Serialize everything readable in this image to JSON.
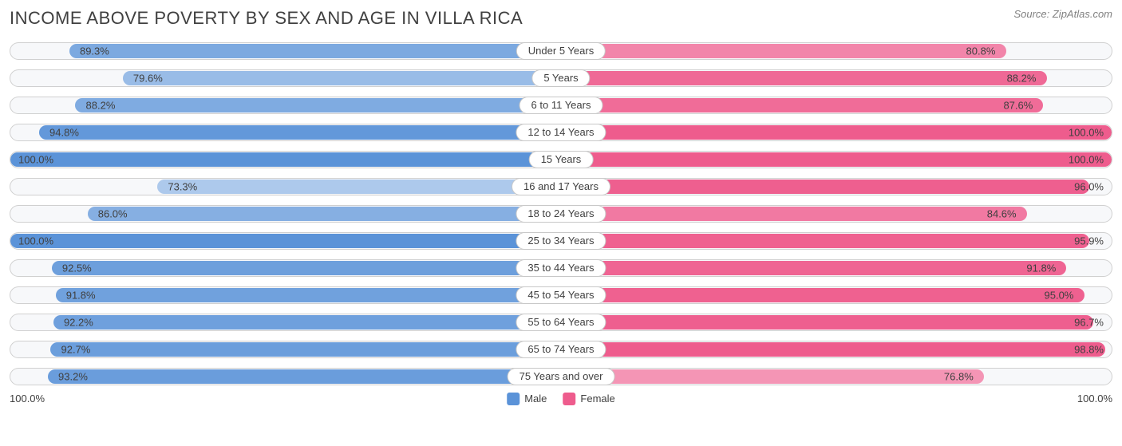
{
  "title": "INCOME ABOVE POVERTY BY SEX AND AGE IN VILLA RICA",
  "source": "Source: ZipAtlas.com",
  "colors": {
    "male_base": "#5b93d8",
    "female_base": "#ee5c8d",
    "track_bg": "#f7f8fa",
    "track_border": "#d0d0d0",
    "text": "#404040"
  },
  "axis": {
    "left_label": "100.0%",
    "right_label": "100.0%"
  },
  "legend": {
    "male": {
      "label": "Male",
      "color": "#5b93d8"
    },
    "female": {
      "label": "Female",
      "color": "#ee5c8d"
    }
  },
  "rows": [
    {
      "category": "Under 5 Years",
      "male": 89.3,
      "female": 80.8,
      "m_op": 0.8,
      "f_op": 0.75
    },
    {
      "category": "5 Years",
      "male": 79.6,
      "female": 88.2,
      "m_op": 0.62,
      "f_op": 0.92
    },
    {
      "category": "6 to 11 Years",
      "male": 88.2,
      "female": 87.6,
      "m_op": 0.78,
      "f_op": 0.9
    },
    {
      "category": "12 to 14 Years",
      "male": 94.8,
      "female": 100.0,
      "m_op": 0.95,
      "f_op": 1.0
    },
    {
      "category": "15 Years",
      "male": 100.0,
      "female": 100.0,
      "m_op": 1.0,
      "f_op": 1.0
    },
    {
      "category": "16 and 17 Years",
      "male": 73.3,
      "female": 96.0,
      "m_op": 0.5,
      "f_op": 0.98
    },
    {
      "category": "18 to 24 Years",
      "male": 86.0,
      "female": 84.6,
      "m_op": 0.74,
      "f_op": 0.82
    },
    {
      "category": "25 to 34 Years",
      "male": 100.0,
      "female": 95.9,
      "m_op": 1.0,
      "f_op": 0.97
    },
    {
      "category": "35 to 44 Years",
      "male": 92.5,
      "female": 91.8,
      "m_op": 0.89,
      "f_op": 0.95
    },
    {
      "category": "45 to 54 Years",
      "male": 91.8,
      "female": 95.0,
      "m_op": 0.87,
      "f_op": 0.97
    },
    {
      "category": "55 to 64 Years",
      "male": 92.2,
      "female": 96.7,
      "m_op": 0.88,
      "f_op": 0.98
    },
    {
      "category": "65 to 74 Years",
      "male": 92.7,
      "female": 98.8,
      "m_op": 0.9,
      "f_op": 1.0
    },
    {
      "category": "75 Years and over",
      "male": 93.2,
      "female": 76.8,
      "m_op": 0.91,
      "f_op": 0.65
    }
  ]
}
